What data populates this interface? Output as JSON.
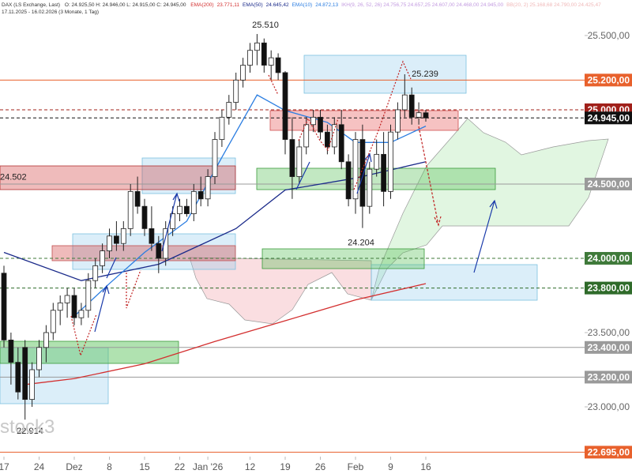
{
  "header": {
    "symbol": "DAX (LS Exchange, Last)",
    "ohlc": "O: 24.925,50  H: 24.946,00  L: 24.915,00  C: 24.945,00",
    "ikh": "IKH(9, 26, 52, 26) 24.756,75  24.657,25  24.607,00  24.468,00  24.945,00",
    "bb": "BB(20, 2) 25.168,68  24.790,00  24.425,47",
    "range": "17.11.2025 - 16.02.2026 (3 Monate, 1 Tag)"
  },
  "chart_data": {
    "type": "candlestick",
    "ylim": [
      22548,
      25739
    ],
    "yticks": [
      {
        "value": 25500,
        "label": "25.500,00"
      },
      {
        "value": 23500,
        "label": "23.500,00"
      },
      {
        "value": 23000,
        "label": "23.000,00"
      }
    ],
    "levels": [
      {
        "value": 25200,
        "label": "25.200,00",
        "color": "#e8612c"
      },
      {
        "value": 25000,
        "label": "25.000,00",
        "color": "#a0201a"
      },
      {
        "value": 24945,
        "label": "24.945,00",
        "color": "#111111"
      },
      {
        "value": 24500,
        "label": "24.500,00",
        "color": "#9a9a9a"
      },
      {
        "value": 24000,
        "label": "24.000,00",
        "color": "#3f7a3a"
      },
      {
        "value": 23800,
        "label": "23.800,00",
        "color": "#2f6b2a"
      },
      {
        "value": 23400,
        "label": "23.400,00",
        "color": "#9a9a9a"
      },
      {
        "value": 23200,
        "label": "23.200,00",
        "color": "#9a9a9a"
      },
      {
        "value": 22695,
        "label": "22.695,00",
        "color": "#e8612c"
      }
    ],
    "xticks": [
      {
        "value": 0,
        "label": "17"
      },
      {
        "value": 5,
        "label": "24"
      },
      {
        "value": 10,
        "label": "Dez"
      },
      {
        "value": 15,
        "label": "8"
      },
      {
        "value": 20,
        "label": "15"
      },
      {
        "value": 25,
        "label": "22"
      },
      {
        "value": 29,
        "label": "Jan '26"
      },
      {
        "value": 35,
        "label": "12"
      },
      {
        "value": 40,
        "label": "19"
      },
      {
        "value": 45,
        "label": "26"
      },
      {
        "value": 50,
        "label": "Feb"
      },
      {
        "value": 55,
        "label": "9"
      },
      {
        "value": 60,
        "label": "16"
      }
    ],
    "candles": {
      "open": [
        23900,
        23450,
        23300,
        23400,
        23050,
        23250,
        23400,
        23500,
        23650,
        23700,
        23750,
        23600,
        23650,
        23850,
        23950,
        24050,
        24150,
        24100,
        24200,
        24450,
        24350,
        24200,
        24100,
        24000,
        24200,
        24300,
        24350,
        24300,
        24450,
        24400,
        24550,
        24800,
        24950,
        25050,
        25200,
        25300,
        25400,
        25450,
        25300,
        25350,
        25250,
        24800,
        24550,
        24750,
        24900,
        24950,
        24850,
        24750,
        24900,
        24650,
        24400,
        24800,
        24350,
        24600,
        24700,
        24450,
        24850,
        25000,
        25100,
        24950,
        24980
      ],
      "high": [
        23950,
        23500,
        23400,
        23450,
        23300,
        23450,
        23550,
        23700,
        23750,
        23800,
        23800,
        23700,
        23900,
        24000,
        24100,
        24200,
        24250,
        24250,
        24500,
        24550,
        24400,
        24350,
        24150,
        24250,
        24350,
        24400,
        24400,
        24500,
        24550,
        24600,
        24850,
        25000,
        25100,
        25250,
        25350,
        25450,
        25510,
        25480,
        25400,
        25380,
        25260,
        24950,
        24800,
        24950,
        25000,
        25000,
        24900,
        24950,
        25000,
        24700,
        24850,
        24900,
        24650,
        24800,
        24850,
        24900,
        25050,
        25239,
        25150,
        25050,
        25000
      ],
      "low": [
        23400,
        23150,
        23050,
        22914,
        23000,
        23200,
        23300,
        23450,
        23550,
        23600,
        23550,
        23550,
        23600,
        23800,
        23900,
        24000,
        24050,
        24050,
        24150,
        24300,
        24150,
        24050,
        23900,
        23950,
        24150,
        24250,
        24280,
        24250,
        24350,
        24350,
        24500,
        24750,
        24900,
        25000,
        25150,
        25250,
        25300,
        25250,
        25200,
        25200,
        24700,
        24400,
        24500,
        24700,
        24850,
        24800,
        24700,
        24700,
        24600,
        24350,
        24300,
        24204,
        24300,
        24550,
        24350,
        24400,
        24800,
        24950,
        24900,
        24900,
        24920
      ],
      "close": [
        23450,
        23300,
        23100,
        23050,
        23250,
        23400,
        23500,
        23650,
        23700,
        23750,
        23600,
        23650,
        23850,
        23950,
        24050,
        24150,
        24100,
        24200,
        24450,
        24350,
        24200,
        24100,
        24000,
        24200,
        24300,
        24350,
        24300,
        24450,
        24400,
        24550,
        24800,
        24950,
        25050,
        25200,
        25300,
        25400,
        25450,
        25300,
        25350,
        25250,
        24800,
        24550,
        24750,
        24900,
        24950,
        24850,
        24750,
        24900,
        24650,
        24400,
        24800,
        24350,
        24600,
        24700,
        24450,
        24850,
        25000,
        25100,
        24950,
        24980,
        24945
      ]
    },
    "series": [
      {
        "name": "EMA(200)",
        "value_label": "23.771,11",
        "color": "#d32f2f",
        "x": [
          3,
          10,
          20,
          30,
          40,
          50,
          60
        ],
        "values": [
          23150,
          23190,
          23290,
          23440,
          23580,
          23720,
          23830
        ]
      },
      {
        "name": "EMA(50)",
        "value_label": "24.645,42",
        "color": "#1a2a8a",
        "x": [
          0,
          11,
          22,
          33,
          40,
          50,
          60
        ],
        "values": [
          24040,
          23850,
          23960,
          24200,
          24460,
          24540,
          24650
        ]
      },
      {
        "name": "EMA(10)",
        "value_label": "24.872,13",
        "color": "#2a7de1",
        "x": [
          10,
          15,
          20,
          26,
          31,
          36,
          40,
          46,
          50,
          55,
          60
        ],
        "values": [
          23610,
          23830,
          24040,
          24250,
          24680,
          25100,
          24995,
          24915,
          24780,
          24780,
          24890
        ]
      }
    ],
    "annotations": [
      "25.510",
      "25.239",
      "24.502",
      "24.204",
      "22.914"
    ],
    "watermark": "stock3"
  }
}
